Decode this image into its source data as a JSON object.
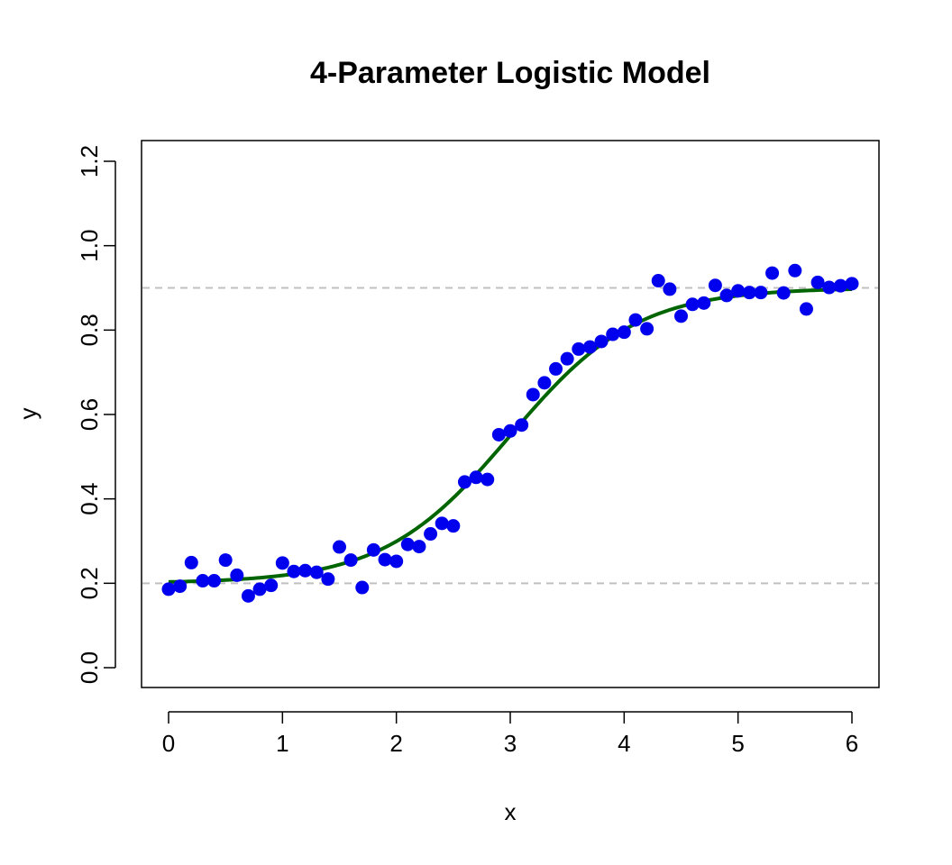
{
  "chart_data": {
    "type": "scatter",
    "title": "4-Parameter Logistic Model",
    "xlabel": "x",
    "ylabel": "y",
    "xlim": [
      0,
      6
    ],
    "ylim": [
      0,
      1.2
    ],
    "x_ticks": [
      "0",
      "1",
      "2",
      "3",
      "4",
      "5",
      "6"
    ],
    "y_ticks": [
      "0.0",
      "0.2",
      "0.4",
      "0.6",
      "0.8",
      "1.0",
      "1.2"
    ],
    "grid": false,
    "legend": "none",
    "reference_lines": [
      {
        "axis": "y",
        "value": 0.2,
        "style": "dashed",
        "color": "#c0c0c0"
      },
      {
        "axis": "y",
        "value": 0.9,
        "style": "dashed",
        "color": "#c0c0c0"
      }
    ],
    "points": {
      "color": "#0000ee",
      "x": [
        0.0,
        0.1,
        0.2,
        0.3,
        0.4,
        0.5,
        0.6,
        0.7,
        0.8,
        0.9,
        1.0,
        1.1,
        1.2,
        1.3,
        1.4,
        1.5,
        1.6,
        1.7,
        1.8,
        1.9,
        2.0,
        2.1,
        2.2,
        2.3,
        2.4,
        2.5,
        2.6,
        2.7,
        2.8,
        2.9,
        3.0,
        3.1,
        3.2,
        3.3,
        3.4,
        3.5,
        3.6,
        3.7,
        3.8,
        3.9,
        4.0,
        4.1,
        4.2,
        4.3,
        4.4,
        4.5,
        4.6,
        4.7,
        4.8,
        4.9,
        5.0,
        5.1,
        5.2,
        5.3,
        5.4,
        5.5,
        5.6,
        5.7,
        5.8,
        5.9,
        6.0
      ],
      "y": [
        0.186,
        0.193,
        0.249,
        0.206,
        0.206,
        0.255,
        0.219,
        0.17,
        0.186,
        0.195,
        0.248,
        0.228,
        0.23,
        0.226,
        0.21,
        0.286,
        0.255,
        0.19,
        0.279,
        0.256,
        0.252,
        0.292,
        0.287,
        0.317,
        0.342,
        0.336,
        0.44,
        0.451,
        0.446,
        0.552,
        0.561,
        0.575,
        0.647,
        0.675,
        0.708,
        0.732,
        0.755,
        0.76,
        0.773,
        0.79,
        0.795,
        0.824,
        0.803,
        0.917,
        0.897,
        0.833,
        0.861,
        0.864,
        0.906,
        0.882,
        0.893,
        0.889,
        0.889,
        0.935,
        0.888,
        0.941,
        0.85,
        0.913,
        0.901,
        0.905,
        0.91
      ]
    },
    "fitted_curve": {
      "model": "4-parameter logistic",
      "color": "#006400",
      "lower": 0.2,
      "upper": 0.9,
      "ec50": 3.0,
      "slope": 1.8
    }
  }
}
